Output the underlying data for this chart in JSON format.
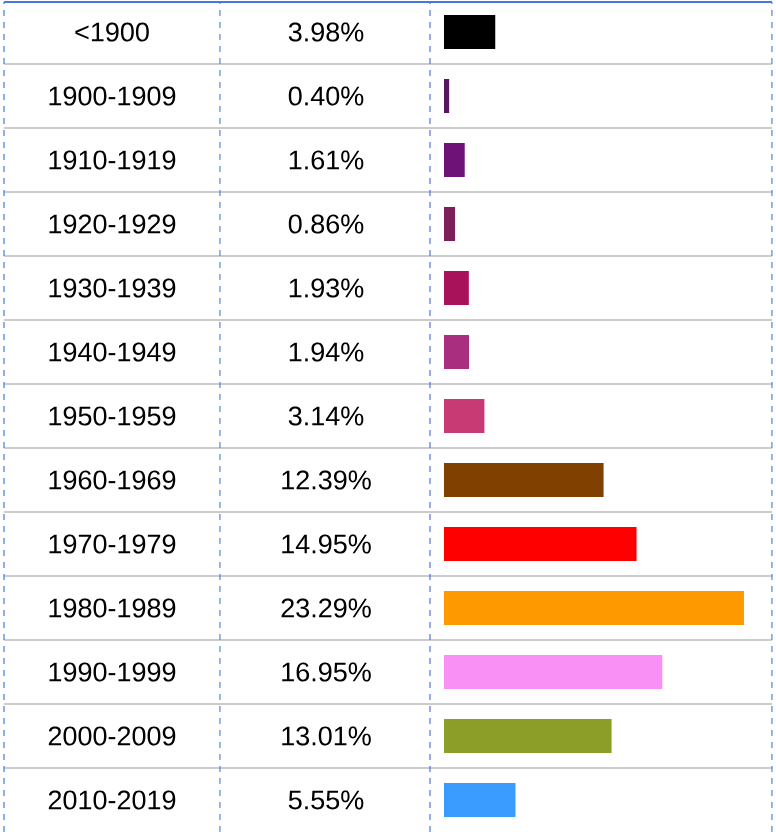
{
  "chart_data": {
    "type": "bar",
    "orientation": "horizontal",
    "categories": [
      "<1900",
      "1900-1909",
      "1910-1919",
      "1920-1929",
      "1930-1939",
      "1940-1949",
      "1950-1959",
      "1960-1969",
      "1970-1979",
      "1980-1989",
      "1990-1999",
      "2000-2009",
      "2010-2019"
    ],
    "values": [
      3.98,
      0.4,
      1.61,
      0.86,
      1.93,
      1.94,
      3.14,
      12.39,
      14.95,
      23.29,
      16.95,
      13.01,
      5.55
    ],
    "value_labels": [
      "3.98%",
      "0.40%",
      "1.61%",
      "0.86%",
      "1.93%",
      "1.94%",
      "3.14%",
      "12.39%",
      "14.95%",
      "23.29%",
      "16.95%",
      "13.01%",
      "5.55%"
    ],
    "colors": [
      "#000000",
      "#5a1560",
      "#6e1278",
      "#7d1f58",
      "#a8125a",
      "#a92e80",
      "#c83a74",
      "#7f4000",
      "#ff0000",
      "#ff9900",
      "#f890f5",
      "#8c9e28",
      "#3a9cff"
    ]
  }
}
